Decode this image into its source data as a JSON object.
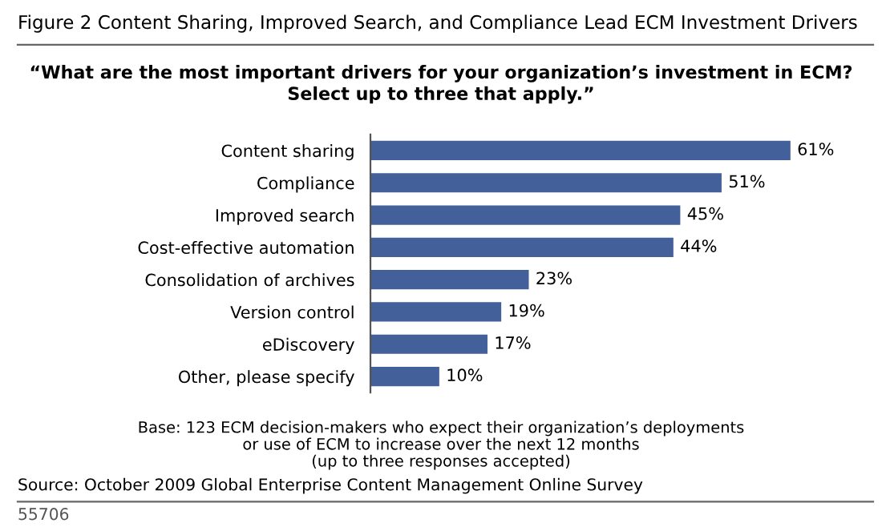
{
  "chart_data": {
    "type": "bar",
    "orientation": "horizontal",
    "title": "Figure 2 Content Sharing, Improved Search, and Compliance Lead ECM Investment Drivers",
    "subtitle": "“What are the most important drivers for your organization’s investment in ECM?\nSelect up to three that apply.”",
    "categories": [
      "Content sharing",
      "Compliance",
      "Improved search",
      "Cost-effective automation",
      "Consolidation of archives",
      "Version control",
      "eDiscovery",
      "Other, please specify"
    ],
    "values": [
      61,
      51,
      45,
      44,
      23,
      19,
      17,
      10
    ],
    "value_labels": [
      "61%",
      "51%",
      "45%",
      "44%",
      "23%",
      "19%",
      "17%",
      "10%"
    ],
    "color": "#43609a",
    "grid": false,
    "legend": false,
    "tick_labels": "y",
    "annotations": [
      "Base: 123 ECM decision-makers who expect their organization’s deployments\nor use of ECM to increase over the next 12 months\n(up to three responses accepted)",
      "Source: October 2009 Global Enterprise Content Management Online Survey",
      "55706"
    ]
  }
}
